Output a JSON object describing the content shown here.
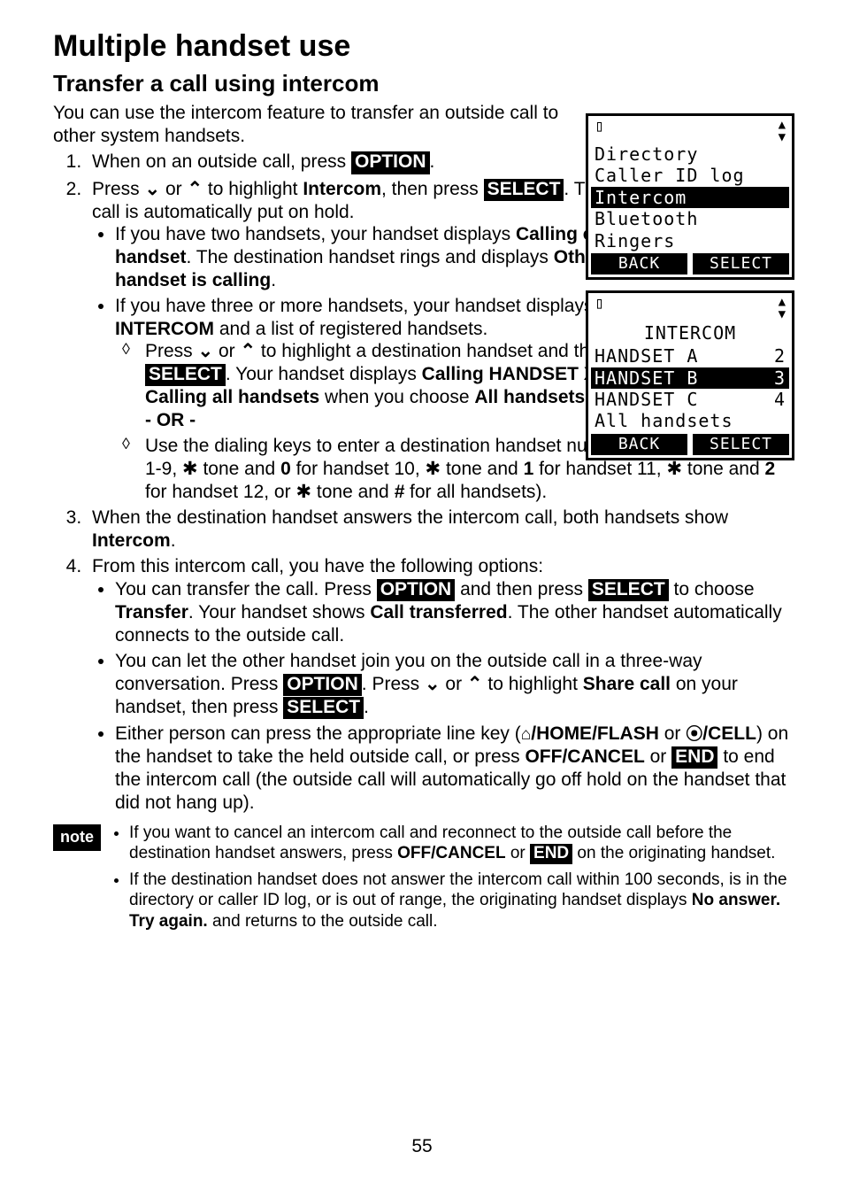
{
  "page": {
    "number": "55",
    "heading": "Multiple handset use",
    "subheading": "Transfer a call using intercom",
    "intro": "You can use the intercom feature to transfer an outside call to other system handsets."
  },
  "labels": {
    "option": "OPTION",
    "select": "SELECT",
    "end": "END",
    "note": "note"
  },
  "steps": {
    "s1_a": "When on an outside call, press ",
    "s1_b": ".",
    "s2_a": "Press ",
    "s2_b": " or ",
    "s2_c": " to highlight ",
    "s2_intercom": "Intercom",
    "s2_d": ", then press ",
    "s2_e": ". The call is automatically put on hold.",
    "s2_b1_a": "If you have two handsets, your handset displays ",
    "s2_b1_bold1": "Calling other handset",
    "s2_b1_b": ". The destination handset rings and displays ",
    "s2_b1_bold2": "Other handset is calling",
    "s2_b1_c": ".",
    "s2_b2_a": "If you have three or more handsets, your handset displays ",
    "s2_b2_bold": "INTERCOM",
    "s2_b2_b": " and a list of registered handsets.",
    "s2_d1_a": "Press ",
    "s2_d1_b": " or ",
    "s2_d1_c": " to highlight a destination handset and then press ",
    "s2_d1_d": ". Your handset displays ",
    "s2_d1_bold1": "Calling HANDSET X",
    "s2_d1_e": ", or ",
    "s2_d1_bold2": "Calling all handsets",
    "s2_d1_f": " when you choose ",
    "s2_d1_bold3": "All handsets",
    "s2_d1_g": ".",
    "or": "- OR -",
    "s2_d2_a": "Use the dialing keys to enter a destination handset number (",
    "s2_d2_bold1": "1",
    "s2_d2_b": "-",
    "s2_d2_bold2": "9",
    "s2_d2_c": " for handsets 1-9, ",
    "s2_d2_d": " and ",
    "s2_d2_bold0": "0",
    "s2_d2_e": " for handset 10, ",
    "s2_d2_f": " and ",
    "s2_d2_bold1b": "1",
    "s2_d2_g": " for handset 11, ",
    "s2_d2_h": " and ",
    "s2_d2_bold2b": "2",
    "s2_d2_i": " for handset 12, or ",
    "s2_d2_j": " and ",
    "s2_d2_boldhash": "#",
    "s2_d2_k": " for all handsets).",
    "star_tone": "✱ tone",
    "s3_a": "When the destination handset answers the intercom call, both handsets show ",
    "s3_bold": "Intercom",
    "s3_b": ".",
    "s4": "From this intercom call, you have the following options:",
    "s4_b1_a": "You can transfer the call. Press ",
    "s4_b1_b": " and then press ",
    "s4_b1_c": " to choose ",
    "s4_b1_bold1": "Transfer",
    "s4_b1_d": ". Your handset shows ",
    "s4_b1_bold2": "Call transferred",
    "s4_b1_e": ". The other handset automatically connects to the outside call.",
    "s4_b2_a": "You can let the other handset join you on the outside call in a three-way conversation. Press ",
    "s4_b2_b": ". Press ",
    "s4_b2_c": " or ",
    "s4_b2_d": " to highlight ",
    "s4_b2_bold": "Share call",
    "s4_b2_e": " on your handset, then press ",
    "s4_b2_f": ".",
    "s4_b3_a": "Either person can press the appropriate line key (",
    "s4_b3_icon_home": "⌂",
    "s4_b3_bold1": "/HOME/",
    "s4_b3_flash": "FLASH",
    "s4_b3_b": " or ",
    "s4_b3_icon_cell": "⦿",
    "s4_b3_bold2": "/CELL",
    "s4_b3_c": ") on the handset to take the held outside call, or press ",
    "s4_b3_bold3": "OFF/",
    "s4_b3_cancel": "CANCEL",
    "s4_b3_d": " or ",
    "s4_b3_e": " to end the intercom call (the outside call will automatically go off hold on the handset that did not hang up)."
  },
  "notes": {
    "n1_a": "If you want to cancel an intercom call and reconnect to the outside call before the destination handset answers, press ",
    "n1_bold": "OFF/",
    "n1_cancel": "CANCEL",
    "n1_b": " or ",
    "n1_c": " on the originating handset.",
    "n2_a": "If the destination handset does not answer the intercom call within 100 seconds, is in the directory or caller ID log, or is out of range, the originating handset displays ",
    "n2_bold": "No answer. Try again.",
    "n2_b": " and returns to the outside call."
  },
  "screen1": {
    "l1": "Directory",
    "l2": "Caller ID log",
    "l3": "Intercom",
    "l4": "Bluetooth",
    "l5": "Ringers",
    "back": "BACK",
    "select": "SELECT"
  },
  "screen2": {
    "title": "INTERCOM",
    "r1a": "HANDSET A",
    "r1b": "2",
    "r2a": "HANDSET B",
    "r2b": "3",
    "r3a": "HANDSET C",
    "r3b": "4",
    "r4": "All handsets",
    "back": "BACK",
    "select": "SELECT"
  },
  "chevrons": {
    "down": "▾",
    "up": "▴",
    "down2": "⌄",
    "up2": "⌃"
  }
}
